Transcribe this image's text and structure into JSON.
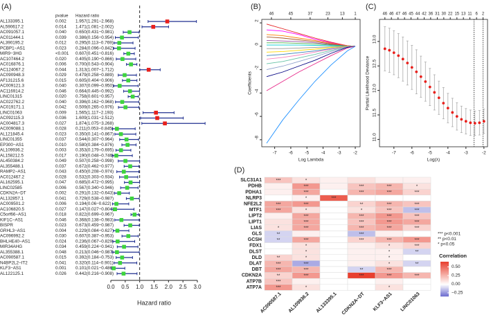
{
  "chart_data": [
    {
      "type": "forest",
      "panel": "(A)",
      "col_pvalue": "pvalue",
      "col_hr": "Hazard ratio",
      "xlabel": "Hazard ratio",
      "categories": [
        "AL133395.1",
        "AL590617.2",
        "AC091057.1",
        "AC011444.1",
        "AL390195.2",
        "PCBP1−AS1",
        "MIR9−3HG",
        "AC107464.2",
        "AC016876.1",
        "AC124067.2",
        "AC090948.3",
        "AF131215.6",
        "AC009121.3",
        "AC116914.2",
        "LINC01315",
        "AC022762.2",
        "AC019171.1",
        "LINC01063",
        "AC092115.3",
        "AC004817.3",
        "AC009088.1",
        "AL121845.4",
        "LINC01355",
        "EP300−AS1",
        "AL109936.2",
        "AL158212.5",
        "AL450384.2",
        "AL355488.1",
        "RAMP2−AS1",
        "AC012467.2",
        "AL162595.1",
        "LINC02585",
        "CDKN2A−DT",
        "AL132857.1",
        "AC009501.2",
        "AC106820.5",
        "C5orf66−AS1",
        "KIF1C−AS1",
        "BISPR",
        "GRHL3−AS1",
        "AC096992.2",
        "BHLHE40−AS1",
        "MIR34AHG",
        "AL355388.1",
        "AC090587.1",
        "N4BP2L2−IT2",
        "KLF3−AS1",
        "AL122125.1"
      ],
      "pvalues": [
        "0.002",
        "0.014",
        "0.040",
        "0.039",
        "0.012",
        "0.023",
        "<0.001",
        "0.020",
        "0.006",
        "0.044",
        "0.029",
        "0.015",
        "0.040",
        "0.046",
        "0.020",
        "0.040",
        "0.042",
        "0.009",
        "0.036",
        "0.027",
        "0.028",
        "0.023",
        "0.037",
        "0.010",
        "0.003",
        "0.017",
        "0.049",
        "0.037",
        "0.043",
        "0.028",
        "0.047",
        "0.006",
        "0.002",
        "0.041",
        "0.006",
        "0.027",
        "0.018",
        "0.046",
        "0.023",
        "0.004",
        "0.030",
        "0.024",
        "0.034",
        "0.048",
        "0.015",
        "0.041",
        "0.001",
        "0.026"
      ],
      "value_labels": [
        "1.957(1.291−2.968)",
        "1.471(1.081−2.002)",
        "0.650(0.431−0.981)",
        "0.386(0.156−0.954)",
        "0.295(0.113−0.769)",
        "0.284(0.096−0.842)",
        "0.607(0.451−0.816)",
        "0.405(0.190−0.866)",
        "0.700(0.543−0.904)",
        "1.313(1.007−1.712)",
        "0.479(0.258−0.889)",
        "0.605(0.404−0.906)",
        "0.307(0.099−0.950)",
        "0.664(0.445−0.992)",
        "0.758(0.601−0.957)",
        "0.396(0.162−0.968)",
        "0.509(0.265−0.976)",
        "1.565(1.117−2.193)",
        "1.609(1.031−2.512)",
        "1.874(1.075−3.268)",
        "0.211(0.053−0.845)",
        "0.350(0.141−0.867)",
        "0.544(0.307−0.964)",
        "0.580(0.384−0.876)",
        "0.353(0.179−0.695)",
        "0.190(0.048−0.746)",
        "0.507(0.258−0.998)",
        "0.672(0.462−0.977)",
        "0.450(0.208−0.974)",
        "0.532(0.303−0.934)",
        "0.685(0.472−0.995)",
        "0.567(0.340−0.946)",
        "0.291(0.132−0.643)",
        "0.729(0.538−0.987)",
        "0.194(0.06−0.622)",
        "0.147(0.027−0.804)",
        "0.822(0.699−0.967)",
        "0.368(0.138−0.983)",
        "0.673(0.459−0.987)",
        "0.229(0.084−0.627)",
        "0.607(0.387−0.953)",
        "0.236(0.067−0.829)",
        "0.459(0.224−0.941)",
        "0.213(0.046−0.987)",
        "0.392(0.184−0.753)",
        "0.320(0.114−0.901)",
        "0.101(0.021−0.486)",
        "0.442(0.216−0.908)"
      ],
      "values": [
        1.957,
        1.471,
        0.65,
        0.386,
        0.295,
        0.284,
        0.607,
        0.405,
        0.7,
        1.313,
        0.479,
        0.605,
        0.307,
        0.664,
        0.758,
        0.396,
        0.509,
        1.565,
        1.609,
        1.874,
        0.211,
        0.35,
        0.544,
        0.58,
        0.353,
        0.19,
        0.507,
        0.672,
        0.45,
        0.532,
        0.685,
        0.567,
        0.291,
        0.729,
        0.194,
        0.147,
        0.822,
        0.368,
        0.673,
        0.229,
        0.607,
        0.236,
        0.459,
        0.213,
        0.392,
        0.32,
        0.101,
        0.442
      ],
      "lower": [
        1.291,
        1.081,
        0.431,
        0.156,
        0.113,
        0.096,
        0.451,
        0.19,
        0.543,
        1.007,
        0.258,
        0.404,
        0.099,
        0.445,
        0.601,
        0.162,
        0.265,
        1.117,
        1.031,
        1.075,
        0.053,
        0.141,
        0.307,
        0.384,
        0.179,
        0.048,
        0.258,
        0.462,
        0.208,
        0.303,
        0.472,
        0.34,
        0.132,
        0.538,
        0.06,
        0.027,
        0.699,
        0.138,
        0.459,
        0.084,
        0.387,
        0.067,
        0.224,
        0.046,
        0.184,
        0.114,
        0.021,
        0.216
      ],
      "upper": [
        2.968,
        2.002,
        0.981,
        0.954,
        0.769,
        0.842,
        0.816,
        0.866,
        0.904,
        1.712,
        0.889,
        0.906,
        0.95,
        0.992,
        0.957,
        0.968,
        0.976,
        2.193,
        2.512,
        3.268,
        0.845,
        0.867,
        0.964,
        0.876,
        0.695,
        0.746,
        0.998,
        0.977,
        0.974,
        0.934,
        0.995,
        0.946,
        0.643,
        0.987,
        0.622,
        0.804,
        0.967,
        0.983,
        0.987,
        0.627,
        0.953,
        0.829,
        0.941,
        0.987,
        0.753,
        0.901,
        0.486,
        0.908
      ],
      "reference": 1,
      "risk_color": "#e8201c",
      "protective_color": "#3ed43e",
      "ci_color": "#1f2f8f",
      "xlim": [
        0,
        3
      ],
      "xticks": [
        {
          "value": 0,
          "label": "0.0"
        },
        {
          "value": 0.5,
          "label": "0.5"
        },
        {
          "value": 1,
          "label": "1.0"
        },
        {
          "value": 1.5,
          "label": "1.5"
        },
        {
          "value": 2,
          "label": "2.0"
        },
        {
          "value": 2.5,
          "label": "2.5"
        },
        {
          "value": 3,
          "label": "3.0"
        }
      ]
    },
    {
      "type": "line",
      "panel": "(B)",
      "xlabel": "Log Lambda",
      "ylabel": "Coefficients",
      "x": [
        -7.5,
        -6.5,
        -5.5,
        -4.5,
        -3.5,
        -2.5,
        -2
      ],
      "series": [
        {
          "color": "#e41a1c",
          "values": [
            1.9,
            1.5,
            1.1,
            0.7,
            0.35,
            0.05,
            0
          ]
        },
        {
          "color": "#ff00ff",
          "values": [
            1.4,
            1.3,
            1.0,
            0.6,
            0.3,
            0.05,
            0
          ]
        },
        {
          "color": "#ff7f00",
          "values": [
            1.0,
            0.9,
            0.7,
            0.5,
            0.25,
            0.05,
            0
          ]
        },
        {
          "color": "#a65628",
          "values": [
            0.8,
            0.7,
            0.55,
            0.4,
            0.2,
            0.03,
            0
          ]
        },
        {
          "color": "#984ea3",
          "values": [
            0.5,
            0.45,
            0.4,
            0.3,
            0.15,
            0.02,
            0
          ]
        },
        {
          "color": "#4daf4a",
          "values": [
            0.3,
            0.3,
            0.25,
            0.2,
            0.1,
            0.01,
            0
          ]
        },
        {
          "color": "#00ced1",
          "values": [
            0.1,
            0.1,
            0.1,
            0.08,
            0.05,
            0,
            0
          ]
        },
        {
          "color": "#999999",
          "values": [
            -0.2,
            -0.2,
            -0.15,
            -0.1,
            -0.05,
            0,
            0
          ]
        },
        {
          "color": "#ffd700",
          "values": [
            -0.5,
            -0.45,
            -0.35,
            -0.25,
            -0.1,
            0,
            0
          ]
        },
        {
          "color": "#377eb8",
          "values": [
            -0.8,
            -0.7,
            -0.55,
            -0.4,
            -0.2,
            -0.02,
            0
          ]
        },
        {
          "color": "#f781bf",
          "values": [
            -1.1,
            -0.95,
            -0.75,
            -0.5,
            -0.25,
            -0.03,
            0
          ]
        },
        {
          "color": "#66c2a5",
          "values": [
            -1.5,
            -1.3,
            -1.0,
            -0.7,
            -0.35,
            -0.05,
            0
          ]
        },
        {
          "color": "#8da0cb",
          "values": [
            -2.0,
            -1.7,
            -1.3,
            -0.9,
            -0.45,
            -0.08,
            0
          ]
        },
        {
          "color": "#000080",
          "values": [
            -2.6,
            -2.2,
            -1.7,
            -1.2,
            -0.6,
            -0.1,
            0
          ]
        },
        {
          "color": "#e7298a",
          "values": [
            -3.8,
            -3.0,
            -2.2,
            -1.5,
            -0.8,
            -0.15,
            0
          ]
        },
        {
          "color": "#1e90ff",
          "values": [
            -8.3,
            -6.3,
            -4.6,
            -3.0,
            -1.6,
            -0.4,
            0
          ]
        }
      ],
      "top_labels": [
        46,
        45,
        37,
        23,
        13,
        1
      ],
      "top_positions": [
        -7.2,
        -6,
        -4.8,
        -3.7,
        -2.8,
        -2
      ],
      "xlim": [
        -7.8,
        -1.7
      ],
      "xticks": [
        -7,
        -6,
        -5,
        -4,
        -3,
        -2
      ],
      "ylim": [
        -8.6,
        2.3
      ],
      "yticks": [
        -8,
        -6,
        -4,
        -2,
        0,
        2
      ]
    },
    {
      "type": "errorbar",
      "panel": "(C)",
      "xlabel": "Log(λ)",
      "ylabel": "Partial Likelihood Deviance",
      "color": "#e8201c",
      "error_color": "#aaaaaa",
      "x": [
        -7.5,
        -7.25,
        -7,
        -6.75,
        -6.5,
        -6.25,
        -6,
        -5.75,
        -5.5,
        -5.25,
        -5,
        -4.75,
        -4.5,
        -4.25,
        -4,
        -3.75,
        -3.5,
        -3.25,
        -3,
        -2.75,
        -2.5,
        -2.25,
        -2
      ],
      "values": [
        12.85,
        12.82,
        12.77,
        12.71,
        12.64,
        12.56,
        12.47,
        12.38,
        12.28,
        12.18,
        12.07,
        11.96,
        11.85,
        11.74,
        11.64,
        11.55,
        11.47,
        11.41,
        11.37,
        11.34,
        11.33,
        11.34,
        11.37
      ],
      "errors": [
        0.45,
        0.45,
        0.45,
        0.45,
        0.45,
        0.45,
        0.45,
        0.45,
        0.42,
        0.4,
        0.38,
        0.36,
        0.34,
        0.32,
        0.3,
        0.29,
        0.28,
        0.27,
        0.26,
        0.26,
        0.25,
        0.25,
        0.25
      ],
      "vlines": [
        -2.55,
        -2.05
      ],
      "top_labels": [
        46,
        46,
        47,
        46,
        45,
        44,
        42,
        36,
        31,
        30,
        22,
        15,
        13,
        11,
        6,
        2
      ],
      "top_positions": [
        -7.5,
        -7.14,
        -6.77,
        -6.41,
        -6.05,
        -5.68,
        -5.32,
        -4.96,
        -4.59,
        -4.23,
        -3.87,
        -3.5,
        -3.14,
        -2.78,
        -2.41,
        -2.05
      ],
      "xlim": [
        -7.8,
        -1.8
      ],
      "xticks": [
        -7,
        -6,
        -5,
        -4,
        -3,
        -2
      ],
      "ylim": [
        10.85,
        13.45
      ],
      "yticks": [
        {
          "value": 11,
          "label": "11.0"
        },
        11.5,
        {
          "value": 12,
          "label": "12.0"
        },
        12.5,
        {
          "value": 13,
          "label": "13.0"
        }
      ]
    },
    {
      "type": "heatmap",
      "panel": "(D)",
      "legend_title": "Correlation",
      "star_legend": [
        "*** p<0.001",
        "** p<0.01",
        "* p<0.05"
      ],
      "rows": [
        "SLC31A1",
        "PDHB",
        "PDHA1",
        "NLRP3",
        "NFE2L2",
        "MTF1",
        "LIPT2",
        "LIPT1",
        "LIAS",
        "GLS",
        "GCSH",
        "FDX1",
        "DLST",
        "DLD",
        "DLAT",
        "DBT",
        "CDKN2A",
        "ATP7B",
        "ATP7A"
      ],
      "columns": [
        "AC090587.1",
        "AL109936.2",
        "AL133395.1",
        "CDKN2A−DT",
        "KLF3−AS1",
        "LINC01063"
      ],
      "values": [
        [
          0.2,
          0.1,
          0.05,
          0.1,
          0.05,
          0.05
        ],
        [
          0.05,
          0.35,
          0.05,
          0.2,
          0.25,
          0.1
        ],
        [
          0.05,
          0.3,
          0,
          0.25,
          0.3,
          0.15
        ],
        [
          0,
          0.05,
          0.55,
          0,
          0,
          0
        ],
        [
          0.3,
          0.35,
          0,
          0.15,
          0.25,
          0.2
        ],
        [
          0.3,
          0.1,
          0,
          0.1,
          0.2,
          -0.15
        ],
        [
          0.05,
          0.3,
          0,
          0.25,
          0.35,
          0.2
        ],
        [
          0.1,
          0.3,
          0,
          0.2,
          0.35,
          0.3
        ],
        [
          0.1,
          0.3,
          0,
          0.25,
          0.3,
          0.15
        ],
        [
          -0.1,
          0.05,
          0,
          -0.15,
          0.05,
          0
        ],
        [
          -0.1,
          0.3,
          0,
          0.15,
          0.25,
          0.35
        ],
        [
          0,
          0.1,
          0,
          0.05,
          0.1,
          0.15
        ],
        [
          0,
          0.1,
          0,
          0.05,
          0.05,
          -0.1
        ],
        [
          0.15,
          0.1,
          0,
          0.05,
          0.05,
          0
        ],
        [
          0.25,
          -0.2,
          0,
          0.05,
          0.1,
          -0.1
        ],
        [
          0.3,
          0.25,
          0,
          -0.1,
          0.25,
          0
        ],
        [
          0.15,
          0.35,
          0,
          0.65,
          0.35,
          0.25
        ],
        [
          0.2,
          0.05,
          0,
          0,
          0.05,
          0
        ],
        [
          0.35,
          0.1,
          0,
          0,
          0.1,
          0
        ]
      ],
      "stars": [
        [
          "***",
          "*",
          null,
          null,
          null,
          null
        ],
        [
          null,
          "***",
          null,
          "***",
          "***",
          "*"
        ],
        [
          null,
          "***",
          null,
          "***",
          "***",
          "***"
        ],
        [
          null,
          "*",
          "***",
          null,
          null,
          null
        ],
        [
          "***",
          "***",
          null,
          "**",
          "***",
          "***"
        ],
        [
          "***",
          "*",
          null,
          "*",
          "***",
          "***"
        ],
        [
          null,
          "***",
          null,
          "***",
          "***",
          "***"
        ],
        [
          null,
          "***",
          null,
          "***",
          "***",
          "***"
        ],
        [
          "*",
          "***",
          null,
          "***",
          "***",
          "***"
        ],
        [
          "**",
          null,
          null,
          "***",
          null,
          null
        ],
        [
          "**",
          "***",
          null,
          "***",
          "***",
          "***"
        ],
        [
          null,
          "*",
          null,
          null,
          "*",
          "***"
        ],
        [
          null,
          "*",
          null,
          null,
          "*",
          "**"
        ],
        [
          "**",
          "*",
          null,
          null,
          "*",
          null
        ],
        [
          "***",
          "***",
          null,
          null,
          "*",
          "**"
        ],
        [
          "***",
          "***",
          null,
          "**",
          "***",
          null
        ],
        [
          "**",
          "***",
          null,
          "***",
          "***",
          "***"
        ],
        [
          "***",
          null,
          null,
          null,
          null,
          null
        ],
        [
          "***",
          "*",
          null,
          null,
          "*",
          null
        ]
      ],
      "color_high": "#e8402f",
      "color_mid": "#ffffff",
      "color_low": "#6a6acf",
      "zlim": [
        -0.35,
        0.65
      ],
      "zticks": [
        {
          "value": 0.5,
          "label": "0.50"
        },
        {
          "value": 0.25,
          "label": "0.25"
        },
        {
          "value": 0,
          "label": "0.00"
        },
        {
          "value": -0.25,
          "label": "−0.25"
        }
      ]
    }
  ]
}
